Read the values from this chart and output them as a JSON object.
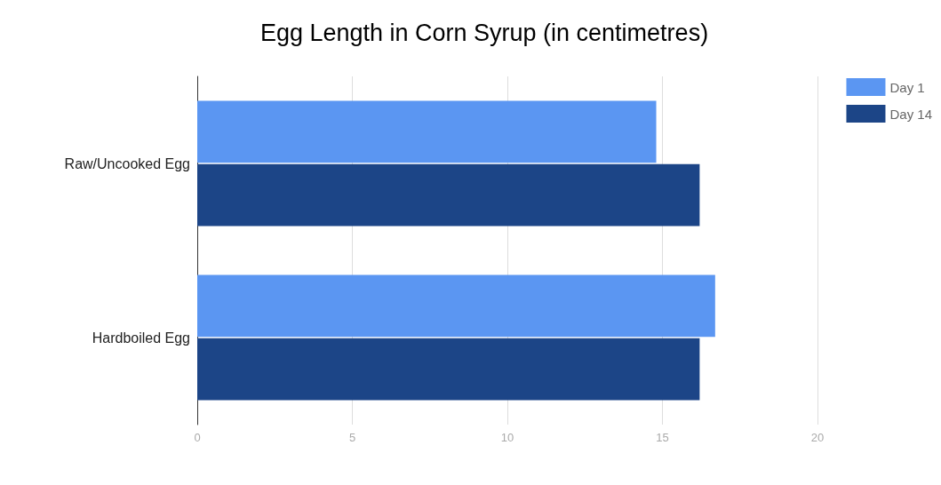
{
  "chart_data": {
    "type": "bar",
    "orientation": "horizontal",
    "title": "Egg Length in Corn Syrup (in centimetres)",
    "categories": [
      "Raw/Uncooked Egg",
      "Hardboiled Egg"
    ],
    "series": [
      {
        "name": "Day 1",
        "color": "#5b96f2",
        "values": [
          14.8,
          16.7
        ]
      },
      {
        "name": "Day 14",
        "color": "#1c4587",
        "values": [
          16.2,
          16.2
        ]
      }
    ],
    "xlim": [
      0,
      20
    ],
    "xticks": [
      0,
      5,
      10,
      15,
      20
    ],
    "grid": "x",
    "legend": "top right"
  }
}
